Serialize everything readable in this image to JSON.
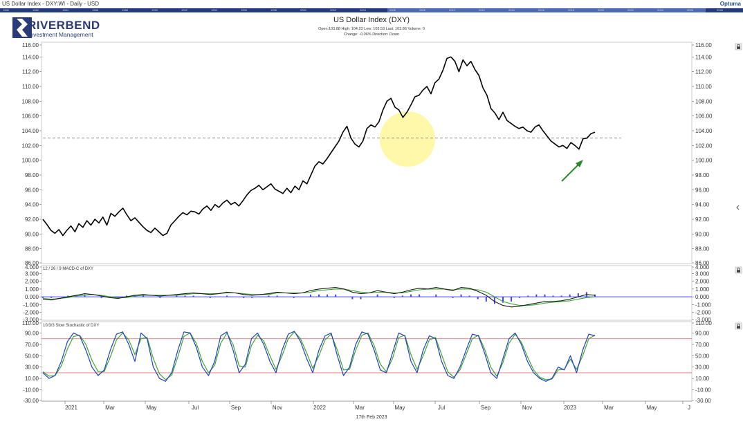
{
  "window_title": "US Dollar Index - DXY:WI - Daily - USD",
  "brand": "Optuma",
  "logo": {
    "name": "RIVERBEND",
    "subtitle": "Investment Management"
  },
  "timeline_years": [
    "1980",
    "1982",
    "1984",
    "1986",
    "1988",
    "1990",
    "1992",
    "1994",
    "1996",
    "1998",
    "2000",
    "2002",
    "2004",
    "2006",
    "2008",
    "2010",
    "2012",
    "2014",
    "2016",
    "2018",
    "2020",
    "2022",
    "2024",
    "2026",
    "2028"
  ],
  "info_line1": "Open:103.88   High: 104.23   Low: 103.53   Last: 103.86   Volume: 0",
  "info_line2": "Change: -0.06%   Direction: Down",
  "footer_date": "17th Feb 2023",
  "colors": {
    "price": "#000000",
    "macd": "#1a1a1a",
    "signal": "#3aa832",
    "hist": "#4040ff",
    "stoch_k": "#1f3fbf",
    "stoch_d": "#3aa832",
    "band": "#e87070",
    "highlight": "#fff79a",
    "arrow": "#2a8a2a"
  },
  "icons": [
    "lock-icon",
    "collapse-arrow-icon"
  ],
  "chart_data": [
    {
      "type": "line",
      "title": "US Dollar Index (DXY)",
      "ylim": [
        86,
        116
      ],
      "yticks": [
        "116.00",
        "114.00",
        "112.00",
        "110.00",
        "108.00",
        "106.00",
        "104.00",
        "102.00",
        "100.00",
        "98.00",
        "96.00",
        "94.00",
        "92.00",
        "90.00",
        "88.00",
        "86.00"
      ],
      "x_labels": [
        "2021",
        "Mar",
        "May",
        "Jul",
        "Sep",
        "Nov",
        "2022",
        "Mar",
        "May",
        "Jul",
        "Sep",
        "Nov",
        "2023",
        "Mar",
        "May",
        "J"
      ],
      "reference_line": 103,
      "annotations": [
        "highlight circle around May 2022 peak",
        "green arrow pointing to Jan 2023 low"
      ],
      "series": [
        {
          "values": [
            92.0,
            91.3,
            90.5,
            90.1,
            90.6,
            89.8,
            90.5,
            91.1,
            90.3,
            91.4,
            90.9,
            91.8,
            91.2,
            92.0,
            91.5,
            92.3,
            91.2,
            92.8,
            92.4,
            93.0,
            93.5,
            92.6,
            91.8,
            92.2,
            91.6,
            91.0,
            90.5,
            90.2,
            90.8,
            90.3,
            89.8,
            90.1,
            91.2,
            91.8,
            92.4,
            92.9,
            92.6,
            93.1,
            93.0,
            92.7,
            93.4,
            93.8,
            93.2,
            94.0,
            93.6,
            94.2,
            94.6,
            94.0,
            94.3,
            93.8,
            94.5,
            95.3,
            95.9,
            96.2,
            96.6,
            96.0,
            96.4,
            96.8,
            96.1,
            95.8,
            95.5,
            96.2,
            95.6,
            96.5,
            96.0,
            97.2,
            96.8,
            98.0,
            99.2,
            99.8,
            99.5,
            100.2,
            101.0,
            101.8,
            102.6,
            103.8,
            104.6,
            103.0,
            102.2,
            101.8,
            102.6,
            104.3,
            104.8,
            104.5,
            105.2,
            106.8,
            108.0,
            108.4,
            107.2,
            106.8,
            105.8,
            106.5,
            107.5,
            108.6,
            108.8,
            109.5,
            110.0,
            109.0,
            110.5,
            111.0,
            112.2,
            113.8,
            114.0,
            113.4,
            112.0,
            113.6,
            112.8,
            113.4,
            112.3,
            111.5,
            109.8,
            108.8,
            107.0,
            106.4,
            105.5,
            106.5,
            105.4,
            105.0,
            104.6,
            104.3,
            104.5,
            104.0,
            103.8,
            104.5,
            104.8,
            104.0,
            103.3,
            102.6,
            102.2,
            101.8,
            102.0,
            101.6,
            102.4,
            102.0,
            101.5,
            102.9,
            103.0,
            103.6,
            103.8
          ]
        }
      ]
    },
    {
      "type": "line",
      "title": "12 / 26 / 9 MACD-C of DXY",
      "ylim": [
        -3,
        4
      ],
      "yticks": [
        "4.000",
        "3.000",
        "2.000",
        "1.000",
        "0.000",
        "-1.000",
        "-2.000",
        "-3.000"
      ],
      "series": [
        {
          "name": "MACD",
          "values": [
            -0.3,
            -0.4,
            -0.2,
            0.0,
            0.2,
            0.4,
            0.3,
            0.1,
            -0.1,
            -0.2,
            0.0,
            0.2,
            0.3,
            0.2,
            0.1,
            0.2,
            0.3,
            0.4,
            0.5,
            0.4,
            0.3,
            0.4,
            0.6,
            0.5,
            0.3,
            0.2,
            0.3,
            0.4,
            0.6,
            0.5,
            0.4,
            0.5,
            0.8,
            1.0,
            1.1,
            1.2,
            1.0,
            0.6,
            0.4,
            0.5,
            0.8,
            0.6,
            0.4,
            0.6,
            0.9,
            1.1,
            1.0,
            1.2,
            1.0,
            0.8,
            1.2,
            1.1,
            0.7,
            0.2,
            -0.6,
            -1.1,
            -1.3,
            -1.2,
            -1.0,
            -0.8,
            -0.6,
            -0.6,
            -0.5,
            -0.3,
            0.0,
            0.3,
            0.2
          ]
        },
        {
          "name": "Signal",
          "values": [
            -0.2,
            -0.3,
            -0.2,
            -0.1,
            0.1,
            0.2,
            0.3,
            0.2,
            0.0,
            -0.1,
            -0.1,
            0.1,
            0.2,
            0.2,
            0.2,
            0.2,
            0.2,
            0.3,
            0.4,
            0.4,
            0.4,
            0.4,
            0.5,
            0.5,
            0.4,
            0.3,
            0.3,
            0.3,
            0.5,
            0.5,
            0.5,
            0.5,
            0.6,
            0.8,
            0.9,
            1.0,
            1.0,
            0.8,
            0.6,
            0.5,
            0.6,
            0.6,
            0.5,
            0.5,
            0.7,
            0.9,
            1.0,
            1.0,
            1.0,
            0.9,
            1.0,
            1.0,
            0.9,
            0.6,
            0.0,
            -0.6,
            -0.9,
            -1.1,
            -1.1,
            -1.0,
            -0.8,
            -0.7,
            -0.6,
            -0.5,
            -0.3,
            -0.1,
            0.0
          ]
        }
      ]
    },
    {
      "type": "line",
      "title": "10/3/3 Slow Stochastic of DXY",
      "ylim": [
        -30,
        110
      ],
      "yticks": [
        "110.00",
        "90.00",
        "70.00",
        "50.00",
        "30.00",
        "10.00",
        "-10.00",
        "-30.00"
      ],
      "bands": [
        80,
        20
      ],
      "series": [
        {
          "name": "%K",
          "values": [
            20,
            10,
            15,
            40,
            75,
            90,
            85,
            60,
            30,
            15,
            25,
            60,
            88,
            92,
            70,
            40,
            90,
            80,
            30,
            10,
            5,
            20,
            60,
            92,
            90,
            65,
            30,
            15,
            40,
            85,
            92,
            60,
            20,
            35,
            80,
            90,
            70,
            40,
            20,
            60,
            88,
            93,
            75,
            45,
            20,
            60,
            85,
            90,
            50,
            15,
            30,
            70,
            92,
            88,
            60,
            25,
            20,
            55,
            90,
            85,
            40,
            20,
            60,
            85,
            80,
            40,
            15,
            10,
            30,
            60,
            88,
            85,
            55,
            20,
            10,
            45,
            80,
            90,
            70,
            40,
            20,
            10,
            5,
            10,
            30,
            25,
            50,
            20,
            60,
            88,
            85
          ]
        },
        {
          "name": "%D",
          "values": [
            22,
            14,
            15,
            32,
            62,
            84,
            86,
            70,
            42,
            22,
            22,
            48,
            78,
            90,
            78,
            52,
            80,
            82,
            45,
            18,
            8,
            16,
            48,
            84,
            90,
            72,
            40,
            20,
            33,
            72,
            90,
            70,
            32,
            30,
            68,
            86,
            76,
            50,
            26,
            50,
            80,
            92,
            80,
            55,
            28,
            50,
            78,
            88,
            60,
            25,
            26,
            60,
            86,
            90,
            68,
            35,
            22,
            45,
            82,
            86,
            52,
            26,
            50,
            78,
            82,
            52,
            22,
            12,
            25,
            52,
            80,
            86,
            62,
            30,
            14,
            38,
            72,
            88,
            74,
            48,
            25,
            12,
            8,
            9,
            25,
            26,
            44,
            26,
            50,
            80,
            86
          ]
        }
      ]
    }
  ]
}
